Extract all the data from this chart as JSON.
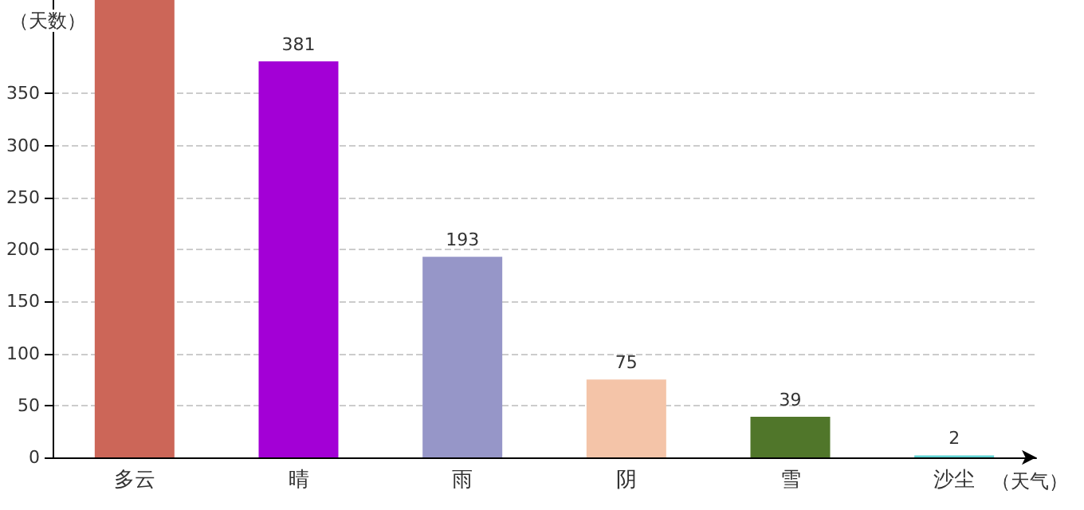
{
  "chart_data": {
    "type": "bar",
    "xlabel": "（天气）",
    "ylabel": "（天数）",
    "categories": [
      "多云",
      "晴",
      "雨",
      "阴",
      "雪",
      "沙尘"
    ],
    "values": [
      440,
      381,
      193,
      75,
      39,
      2
    ],
    "value_labels": [
      null,
      "381",
      "193",
      "75",
      "39",
      "2"
    ],
    "colors": [
      "#cc6658",
      "#a300d6",
      "#9696c8",
      "#f4c4a8",
      "#50762a",
      "#5fd3d3"
    ],
    "ylim": [
      0,
      440
    ],
    "yticks": [
      0,
      50,
      100,
      150,
      200,
      250,
      300,
      350
    ],
    "grid": "y"
  }
}
